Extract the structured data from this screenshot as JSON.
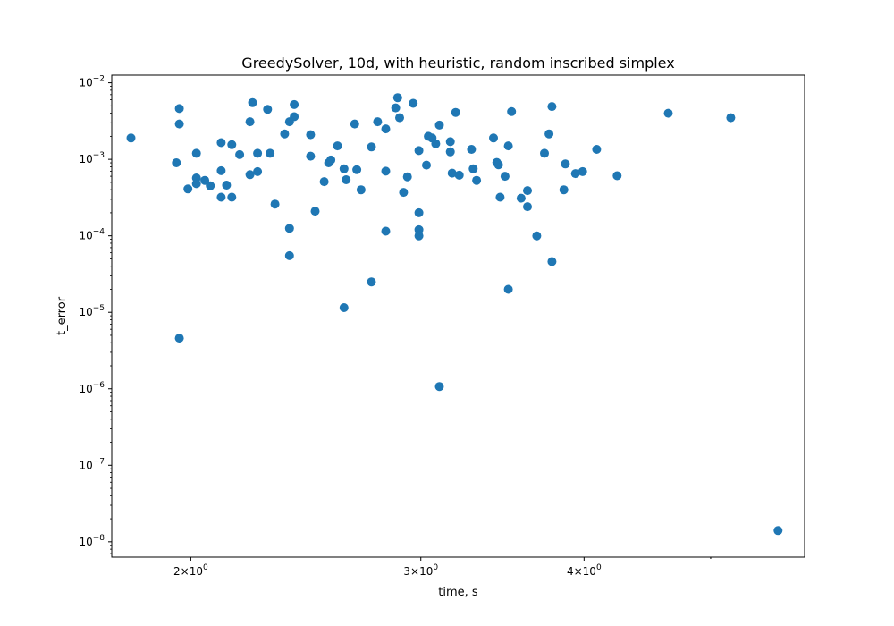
{
  "chart_data": {
    "type": "scatter",
    "title": "GreedySolver, 10d, with heuristic, random inscribed simplex",
    "xlabel": "time, s",
    "ylabel": "t_error",
    "xscale": "log",
    "yscale": "log",
    "xlim": [
      1.74,
      5.9
    ],
    "ylim": [
      6.3e-09,
      0.0126
    ],
    "grid": false,
    "color": "#1f77b4",
    "x_ticks": [
      {
        "value": 2,
        "base": "2",
        "exp": "0"
      },
      {
        "value": 3,
        "base": "3",
        "exp": "0"
      },
      {
        "value": 4,
        "base": "4",
        "exp": "0"
      }
    ],
    "x_minor_ticks": [
      5
    ],
    "y_ticks": [
      {
        "value": 1e-08,
        "exp": "−8"
      },
      {
        "value": 1e-07,
        "exp": "−7"
      },
      {
        "value": 1e-06,
        "exp": "−6"
      },
      {
        "value": 1e-05,
        "exp": "−5"
      },
      {
        "value": 0.0001,
        "exp": "−4"
      },
      {
        "value": 0.001,
        "exp": "−3"
      },
      {
        "value": 0.01,
        "exp": "−2"
      }
    ],
    "points": [
      [
        1.8,
        0.0019
      ],
      [
        1.95,
        0.0009
      ],
      [
        1.96,
        0.0046
      ],
      [
        1.96,
        0.0029
      ],
      [
        1.96,
        4.6e-06
      ],
      [
        1.99,
        0.00041
      ],
      [
        2.02,
        0.0012
      ],
      [
        2.02,
        0.00057
      ],
      [
        2.02,
        0.00048
      ],
      [
        2.05,
        0.00053
      ],
      [
        2.07,
        0.00045
      ],
      [
        2.11,
        0.00165
      ],
      [
        2.11,
        0.00071
      ],
      [
        2.11,
        0.00032
      ],
      [
        2.13,
        0.00046
      ],
      [
        2.15,
        0.00155
      ],
      [
        2.15,
        0.00032
      ],
      [
        2.18,
        0.00115
      ],
      [
        2.22,
        0.0031
      ],
      [
        2.22,
        0.00063
      ],
      [
        2.23,
        0.0055
      ],
      [
        2.25,
        0.0012
      ],
      [
        2.25,
        0.00069
      ],
      [
        2.29,
        0.0045
      ],
      [
        2.3,
        0.0012
      ],
      [
        2.32,
        0.00026
      ],
      [
        2.36,
        0.00215
      ],
      [
        2.38,
        0.0031
      ],
      [
        2.38,
        0.000125
      ],
      [
        2.38,
        5.5e-05
      ],
      [
        2.4,
        0.0036
      ],
      [
        2.4,
        0.0052
      ],
      [
        2.47,
        0.0021
      ],
      [
        2.47,
        0.0011
      ],
      [
        2.49,
        0.00021
      ],
      [
        2.53,
        0.00051
      ],
      [
        2.55,
        0.0009
      ],
      [
        2.56,
        0.00098
      ],
      [
        2.59,
        0.0015
      ],
      [
        2.62,
        0.00075
      ],
      [
        2.62,
        1.15e-05
      ],
      [
        2.63,
        0.00054
      ],
      [
        2.67,
        0.0029
      ],
      [
        2.68,
        0.00073
      ],
      [
        2.7,
        0.0004
      ],
      [
        2.75,
        0.00145
      ],
      [
        2.75,
        2.5e-05
      ],
      [
        2.78,
        0.0031
      ],
      [
        2.82,
        0.0025
      ],
      [
        2.82,
        0.0007
      ],
      [
        2.82,
        0.000115
      ],
      [
        2.87,
        0.0047
      ],
      [
        2.88,
        0.0064
      ],
      [
        2.89,
        0.0035
      ],
      [
        2.91,
        0.00037
      ],
      [
        2.93,
        0.00059
      ],
      [
        2.96,
        0.0054
      ],
      [
        2.99,
        0.0013
      ],
      [
        2.99,
        0.0002
      ],
      [
        2.99,
        0.00012
      ],
      [
        2.99,
        0.0001
      ],
      [
        3.03,
        0.00084
      ],
      [
        3.04,
        0.002
      ],
      [
        3.06,
        0.0019
      ],
      [
        3.08,
        0.0016
      ],
      [
        3.1,
        0.0028
      ],
      [
        3.1,
        1.07e-06
      ],
      [
        3.16,
        0.0017
      ],
      [
        3.16,
        0.00125
      ],
      [
        3.17,
        0.00066
      ],
      [
        3.19,
        0.0041
      ],
      [
        3.21,
        0.00062
      ],
      [
        3.28,
        0.00135
      ],
      [
        3.29,
        0.00075
      ],
      [
        3.31,
        0.00053
      ],
      [
        3.41,
        0.0019
      ],
      [
        3.43,
        0.00091
      ],
      [
        3.44,
        0.00085
      ],
      [
        3.45,
        0.00032
      ],
      [
        3.48,
        0.0006
      ],
      [
        3.5,
        0.0015
      ],
      [
        3.5,
        2e-05
      ],
      [
        3.52,
        0.0042
      ],
      [
        3.58,
        0.00031
      ],
      [
        3.62,
        0.00039
      ],
      [
        3.62,
        0.00024
      ],
      [
        3.68,
        0.0001
      ],
      [
        3.73,
        0.0012
      ],
      [
        3.76,
        0.00215
      ],
      [
        3.78,
        0.0049
      ],
      [
        3.78,
        4.6e-05
      ],
      [
        3.86,
        0.0004
      ],
      [
        3.87,
        0.00087
      ],
      [
        3.94,
        0.00065
      ],
      [
        3.99,
        0.00069
      ],
      [
        4.09,
        0.00135
      ],
      [
        4.24,
        0.00061
      ],
      [
        4.64,
        0.004
      ],
      [
        5.18,
        0.0035
      ],
      [
        5.63,
        1.4e-08
      ]
    ]
  }
}
